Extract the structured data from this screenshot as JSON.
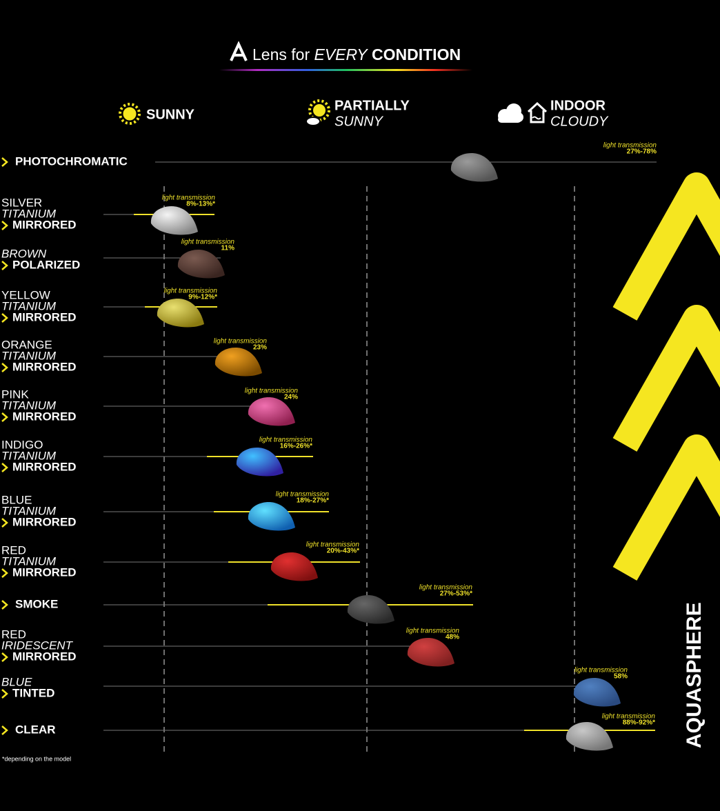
{
  "header": {
    "title_lead": "Lens for",
    "title_em": "EVERY",
    "title_tail": "CONDITION"
  },
  "conditions": [
    {
      "line1": "SUNNY"
    },
    {
      "line1": "PARTIALLY",
      "line2": "SUNNY"
    },
    {
      "line1": "INDOOR",
      "line2": "CLOUDY"
    }
  ],
  "lenses": [
    {
      "lines": [],
      "type": "PHOTOCHROMATIC",
      "caption": "light transmission",
      "value": "27%-78%"
    },
    {
      "lines": [
        "SILVER",
        "TITANIUM"
      ],
      "type": "MIRRORED",
      "caption": "light transmission",
      "value": "8%-13%*"
    },
    {
      "lines": [
        "BROWN"
      ],
      "type": "POLARIZED",
      "caption": "light transmission",
      "value": "11%"
    },
    {
      "lines": [
        "YELLOW",
        "TITANIUM"
      ],
      "type": "MIRRORED",
      "caption": "light transmission",
      "value": "9%-12%*"
    },
    {
      "lines": [
        "ORANGE",
        "TITANIUM"
      ],
      "type": "MIRRORED",
      "caption": "light transmission",
      "value": "23%"
    },
    {
      "lines": [
        "PINK",
        "TITANIUM"
      ],
      "type": "MIRRORED",
      "caption": "light transmission",
      "value": "24%"
    },
    {
      "lines": [
        "INDIGO",
        "TITANIUM"
      ],
      "type": "MIRRORED",
      "caption": "light transmission",
      "value": "16%-26%*"
    },
    {
      "lines": [
        "BLUE",
        "TITANIUM"
      ],
      "type": "MIRRORED",
      "caption": "light transmission",
      "value": "18%-27%*"
    },
    {
      "lines": [
        "RED",
        "TITANIUM"
      ],
      "type": "MIRRORED",
      "caption": "light transmission",
      "value": "20%-43%*"
    },
    {
      "lines": [],
      "type": "SMOKE",
      "caption": "light transmission",
      "value": "27%-53%*"
    },
    {
      "lines": [
        "RED",
        "IRIDESCENT"
      ],
      "type": "MIRRORED",
      "caption": "light transmission",
      "value": "48%"
    },
    {
      "lines": [
        "BLUE"
      ],
      "type": "TINTED",
      "caption": "light transmission",
      "value": "58%"
    },
    {
      "lines": [],
      "type": "CLEAR",
      "caption": "light transmission",
      "value": "88%-92%*"
    }
  ],
  "footnote": "*depending on the model",
  "brand": "AQUASPHERE"
}
